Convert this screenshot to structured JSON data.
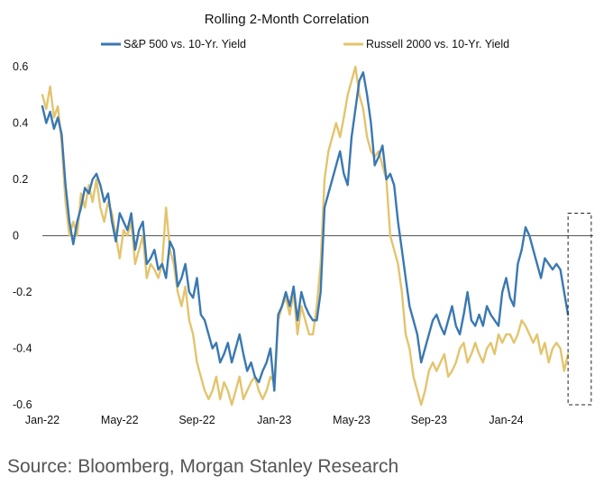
{
  "chart_data": {
    "type": "line",
    "title": "Rolling 2-Month Correlation",
    "xlabel": "",
    "ylabel": "",
    "ylim": [
      -0.6,
      0.6
    ],
    "xlim": [
      0,
      28.5
    ],
    "yticks": [
      0.6,
      0.4,
      0.2,
      0,
      -0.2,
      -0.4,
      -0.6
    ],
    "yticklabels": [
      "0.6",
      "0.4",
      "0.2",
      "0",
      "-0.2",
      "-0.4",
      "-0.6"
    ],
    "xticks": [
      {
        "pos": 0,
        "label": "Jan-22"
      },
      {
        "pos": 4,
        "label": "May-22"
      },
      {
        "pos": 8,
        "label": "Sep-22"
      },
      {
        "pos": 12,
        "label": "Jan-23"
      },
      {
        "pos": 16,
        "label": "May-23"
      },
      {
        "pos": 20,
        "label": "Sep-23"
      },
      {
        "pos": 24,
        "label": "Jan-24"
      }
    ],
    "zero_line": 0,
    "series": [
      {
        "name": "S&P 500 vs. 10-Yr. Yield",
        "color": "#3A78B1",
        "x": [
          0,
          0.2,
          0.4,
          0.6,
          0.8,
          1.0,
          1.2,
          1.4,
          1.6,
          1.8,
          2.0,
          2.2,
          2.4,
          2.6,
          2.8,
          3.0,
          3.2,
          3.4,
          3.6,
          3.8,
          4.0,
          4.2,
          4.4,
          4.6,
          4.8,
          5.0,
          5.2,
          5.4,
          5.6,
          5.8,
          6.0,
          6.2,
          6.4,
          6.6,
          6.8,
          7.0,
          7.2,
          7.4,
          7.6,
          7.8,
          8.0,
          8.2,
          8.4,
          8.6,
          8.8,
          9.0,
          9.2,
          9.4,
          9.6,
          9.8,
          10.0,
          10.2,
          10.4,
          10.6,
          10.8,
          11.0,
          11.2,
          11.4,
          11.6,
          11.8,
          12.0,
          12.2,
          12.4,
          12.6,
          12.8,
          13.0,
          13.2,
          13.4,
          13.6,
          13.8,
          14.0,
          14.2,
          14.4,
          14.6,
          14.8,
          15.0,
          15.2,
          15.4,
          15.6,
          15.8,
          16.0,
          16.2,
          16.4,
          16.6,
          16.8,
          17.0,
          17.2,
          17.4,
          17.6,
          17.8,
          18.0,
          18.2,
          18.4,
          18.6,
          18.8,
          19.0,
          19.2,
          19.4,
          19.6,
          19.8,
          20.0,
          20.2,
          20.4,
          20.6,
          20.8,
          21.0,
          21.2,
          21.4,
          21.6,
          21.8,
          22.0,
          22.2,
          22.4,
          22.6,
          22.8,
          23.0,
          23.2,
          23.4,
          23.6,
          23.8,
          24.0,
          24.2,
          24.4,
          24.6,
          24.8,
          25.0,
          25.2,
          25.4,
          25.6,
          25.8,
          26.0,
          26.2,
          26.4,
          26.6,
          26.8,
          27.0,
          27.2
        ],
        "values": [
          0.46,
          0.4,
          0.44,
          0.38,
          0.42,
          0.36,
          0.18,
          0.05,
          -0.03,
          0.05,
          0.1,
          0.17,
          0.15,
          0.2,
          0.22,
          0.18,
          0.12,
          0.15,
          0.05,
          -0.02,
          0.08,
          0.05,
          0.02,
          0.08,
          -0.05,
          0.02,
          0.05,
          -0.1,
          -0.08,
          -0.05,
          -0.12,
          -0.1,
          -0.15,
          -0.02,
          -0.05,
          -0.18,
          -0.15,
          -0.1,
          -0.2,
          -0.22,
          -0.15,
          -0.28,
          -0.3,
          -0.35,
          -0.4,
          -0.38,
          -0.45,
          -0.42,
          -0.38,
          -0.45,
          -0.4,
          -0.35,
          -0.42,
          -0.48,
          -0.45,
          -0.5,
          -0.52,
          -0.48,
          -0.45,
          -0.4,
          -0.55,
          -0.28,
          -0.25,
          -0.2,
          -0.25,
          -0.18,
          -0.3,
          -0.2,
          -0.25,
          -0.28,
          -0.3,
          -0.3,
          -0.2,
          0.1,
          0.15,
          0.2,
          0.25,
          0.3,
          0.22,
          0.18,
          0.35,
          0.45,
          0.55,
          0.58,
          0.5,
          0.4,
          0.25,
          0.28,
          0.32,
          0.2,
          0.22,
          0.18,
          0.05,
          -0.05,
          -0.15,
          -0.25,
          -0.3,
          -0.35,
          -0.45,
          -0.4,
          -0.35,
          -0.3,
          -0.28,
          -0.32,
          -0.35,
          -0.3,
          -0.25,
          -0.32,
          -0.35,
          -0.28,
          -0.2,
          -0.3,
          -0.32,
          -0.28,
          -0.32,
          -0.25,
          -0.28,
          -0.3,
          -0.32,
          -0.2,
          -0.15,
          -0.22,
          -0.25,
          -0.1,
          -0.05,
          0.03,
          0.0,
          -0.05,
          -0.1,
          -0.15,
          -0.08,
          -0.1,
          -0.12,
          -0.1,
          -0.12,
          -0.2,
          -0.28
        ]
      },
      {
        "name": "Russell 2000 vs. 10-Yr. Yield",
        "color": "#E3C46E",
        "x": [
          0,
          0.2,
          0.4,
          0.6,
          0.8,
          1.0,
          1.2,
          1.4,
          1.6,
          1.8,
          2.0,
          2.2,
          2.4,
          2.6,
          2.8,
          3.0,
          3.2,
          3.4,
          3.6,
          3.8,
          4.0,
          4.2,
          4.4,
          4.6,
          4.8,
          5.0,
          5.2,
          5.4,
          5.6,
          5.8,
          6.0,
          6.2,
          6.4,
          6.6,
          6.8,
          7.0,
          7.2,
          7.4,
          7.6,
          7.8,
          8.0,
          8.2,
          8.4,
          8.6,
          8.8,
          9.0,
          9.2,
          9.4,
          9.6,
          9.8,
          10.0,
          10.2,
          10.4,
          10.6,
          10.8,
          11.0,
          11.2,
          11.4,
          11.6,
          11.8,
          12.0,
          12.2,
          12.4,
          12.6,
          12.8,
          13.0,
          13.2,
          13.4,
          13.6,
          13.8,
          14.0,
          14.2,
          14.4,
          14.6,
          14.8,
          15.0,
          15.2,
          15.4,
          15.6,
          15.8,
          16.0,
          16.2,
          16.4,
          16.6,
          16.8,
          17.0,
          17.2,
          17.4,
          17.6,
          17.8,
          18.0,
          18.2,
          18.4,
          18.6,
          18.8,
          19.0,
          19.2,
          19.4,
          19.6,
          19.8,
          20.0,
          20.2,
          20.4,
          20.6,
          20.8,
          21.0,
          21.2,
          21.4,
          21.6,
          21.8,
          22.0,
          22.2,
          22.4,
          22.6,
          22.8,
          23.0,
          23.2,
          23.4,
          23.6,
          23.8,
          24.0,
          24.2,
          24.4,
          24.6,
          24.8,
          25.0,
          25.2,
          25.4,
          25.6,
          25.8,
          26.0,
          26.2,
          26.4,
          26.6,
          26.8,
          27.0,
          27.2
        ],
        "values": [
          0.5,
          0.45,
          0.53,
          0.42,
          0.46,
          0.33,
          0.12,
          0.0,
          0.05,
          0.0,
          0.15,
          0.1,
          0.18,
          0.12,
          0.2,
          0.1,
          0.05,
          0.12,
          0.08,
          0.0,
          -0.08,
          0.02,
          0.0,
          0.05,
          -0.1,
          -0.05,
          0.0,
          -0.15,
          -0.1,
          -0.12,
          -0.15,
          -0.1,
          0.1,
          -0.05,
          -0.1,
          -0.2,
          -0.25,
          -0.18,
          -0.3,
          -0.35,
          -0.45,
          -0.5,
          -0.55,
          -0.58,
          -0.55,
          -0.5,
          -0.58,
          -0.52,
          -0.55,
          -0.6,
          -0.55,
          -0.5,
          -0.58,
          -0.55,
          -0.52,
          -0.5,
          -0.55,
          -0.58,
          -0.55,
          -0.5,
          -0.52,
          -0.3,
          -0.25,
          -0.22,
          -0.28,
          -0.2,
          -0.35,
          -0.25,
          -0.3,
          -0.35,
          -0.35,
          -0.25,
          -0.1,
          0.2,
          0.3,
          0.35,
          0.4,
          0.35,
          0.42,
          0.5,
          0.55,
          0.6,
          0.5,
          0.45,
          0.35,
          0.3,
          0.28,
          0.3,
          0.25,
          0.2,
          0.0,
          -0.05,
          -0.1,
          -0.2,
          -0.35,
          -0.4,
          -0.5,
          -0.55,
          -0.6,
          -0.55,
          -0.48,
          -0.45,
          -0.48,
          -0.45,
          -0.42,
          -0.5,
          -0.48,
          -0.45,
          -0.4,
          -0.38,
          -0.45,
          -0.42,
          -0.38,
          -0.42,
          -0.45,
          -0.4,
          -0.38,
          -0.42,
          -0.35,
          -0.38,
          -0.35,
          -0.35,
          -0.38,
          -0.35,
          -0.3,
          -0.32,
          -0.35,
          -0.38,
          -0.35,
          -0.42,
          -0.38,
          -0.45,
          -0.4,
          -0.38,
          -0.4,
          -0.48,
          -0.42
        ]
      }
    ],
    "highlight_box": {
      "x_start": 27.2,
      "x_end": 28.4,
      "y_start": 0.08,
      "y_end": -0.6,
      "style": "dashed"
    },
    "legend": {
      "placement": "top"
    }
  },
  "source": "Source: Bloomberg, Morgan Stanley Research"
}
